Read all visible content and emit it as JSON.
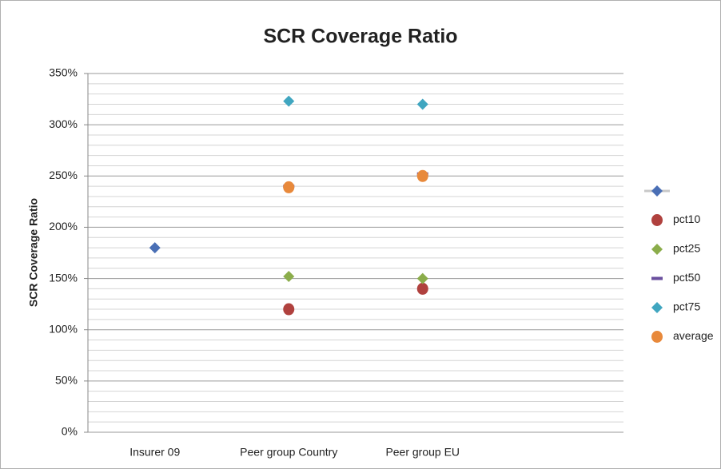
{
  "chart_data": {
    "type": "scatter",
    "title": "SCR Coverage Ratio",
    "y_label": "SCR Coverage Ratio",
    "categories": [
      "Insurer 09",
      "Peer group Country",
      "Peer group EU",
      null
    ],
    "ylim": [
      0,
      350
    ],
    "yticks": [
      {
        "value": 0,
        "label": "0%"
      },
      {
        "value": 50,
        "label": "50%"
      },
      {
        "value": 100,
        "label": "100%"
      },
      {
        "value": 150,
        "label": "150%"
      },
      {
        "value": 200,
        "label": "200%"
      },
      {
        "value": 250,
        "label": "250%"
      },
      {
        "value": 300,
        "label": "300%"
      },
      {
        "value": 350,
        "label": "350%"
      }
    ],
    "y_minor_ticks": [
      10,
      20,
      30,
      40,
      60,
      70,
      80,
      90,
      110,
      120,
      130,
      140,
      160,
      170,
      180,
      190,
      210,
      220,
      230,
      240,
      260,
      270,
      280,
      290,
      310,
      320,
      330,
      340
    ],
    "grid": true,
    "legend": "right",
    "series": [
      {
        "name": null,
        "color": "#4a6fb5",
        "marker": "diamond",
        "values": [
          180,
          null,
          null,
          null
        ]
      },
      {
        "name": "pct10",
        "color": "#b0413e",
        "marker": "circle",
        "values": [
          null,
          120,
          140,
          null
        ]
      },
      {
        "name": "pct25",
        "color": "#8bad4b",
        "marker": "diamond",
        "values": [
          null,
          152,
          150,
          null
        ]
      },
      {
        "name": "pct50",
        "color": "#6a4f9e",
        "marker": "dash",
        "values": [
          null,
          240,
          252,
          null
        ]
      },
      {
        "name": "pct75",
        "color": "#40a6c0",
        "marker": "diamond",
        "values": [
          null,
          323,
          320,
          null
        ]
      },
      {
        "name": "average",
        "color": "#e8893b",
        "marker": "circle",
        "values": [
          null,
          239,
          250,
          null
        ]
      }
    ]
  }
}
